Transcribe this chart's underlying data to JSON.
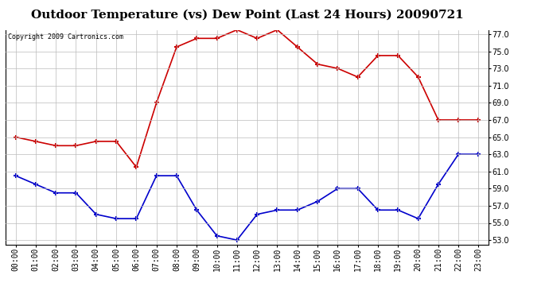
{
  "title": "Outdoor Temperature (vs) Dew Point (Last 24 Hours) 20090721",
  "copyright": "Copyright 2009 Cartronics.com",
  "hours": [
    "00:00",
    "01:00",
    "02:00",
    "03:00",
    "04:00",
    "05:00",
    "06:00",
    "07:00",
    "08:00",
    "09:00",
    "10:00",
    "11:00",
    "12:00",
    "13:00",
    "14:00",
    "15:00",
    "16:00",
    "17:00",
    "18:00",
    "19:00",
    "20:00",
    "21:00",
    "22:00",
    "23:00"
  ],
  "temp": [
    65.0,
    64.5,
    64.0,
    64.0,
    64.5,
    64.5,
    61.5,
    69.0,
    75.5,
    76.5,
    76.5,
    77.5,
    76.5,
    77.5,
    75.5,
    73.5,
    73.0,
    72.0,
    74.5,
    74.5,
    72.0,
    67.0,
    67.0,
    67.0
  ],
  "dew": [
    60.5,
    59.5,
    58.5,
    58.5,
    56.0,
    55.5,
    55.5,
    60.5,
    60.5,
    56.5,
    53.5,
    53.0,
    56.0,
    56.5,
    56.5,
    57.5,
    59.0,
    59.0,
    56.5,
    56.5,
    55.5,
    59.5,
    63.0,
    63.0
  ],
  "temp_color": "#cc0000",
  "dew_color": "#0000cc",
  "ylim_min": 52.5,
  "ylim_max": 77.5,
  "yticks": [
    53.0,
    55.0,
    57.0,
    59.0,
    61.0,
    63.0,
    65.0,
    67.0,
    69.0,
    71.0,
    73.0,
    75.0,
    77.0
  ],
  "bg_color": "#ffffff",
  "grid_color": "#bbbbbb",
  "marker": "+",
  "markersize": 5,
  "markeredgewidth": 1.5,
  "linewidth": 1.2,
  "title_fontsize": 11,
  "copyright_fontsize": 6,
  "tick_fontsize": 7,
  "figwidth": 6.9,
  "figheight": 3.75,
  "dpi": 100
}
